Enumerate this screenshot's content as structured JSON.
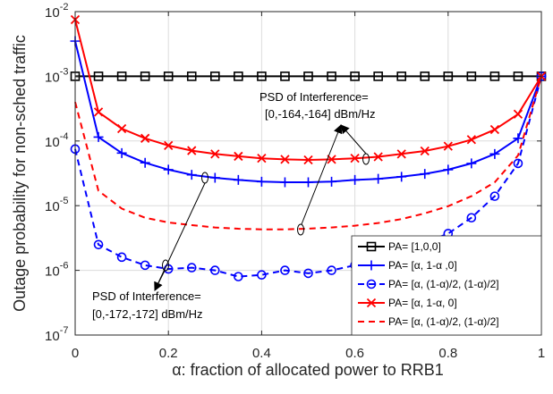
{
  "chart_data": {
    "type": "line",
    "xlabel": "α: fraction of allocated power to RRB1",
    "ylabel": "Outage probability for non-sched traffic",
    "xlim": [
      0,
      1
    ],
    "ylim": [
      1e-07,
      0.01
    ],
    "y_scale": "log",
    "grid": true,
    "legend_position": "bottom-right",
    "x_ticks": [
      0,
      0.2,
      0.4,
      0.6,
      0.8,
      1
    ],
    "x_tick_labels": [
      "0",
      "0.2",
      "0.4",
      "0.6",
      "0.8",
      "1"
    ],
    "y_ticks": [
      1e-07,
      1e-06,
      1e-05,
      0.0001,
      0.001,
      0.01
    ],
    "y_tick_labels": [
      {
        "base": "10",
        "exp": "-7"
      },
      {
        "base": "10",
        "exp": "-6"
      },
      {
        "base": "10",
        "exp": "-5"
      },
      {
        "base": "10",
        "exp": "-4"
      },
      {
        "base": "10",
        "exp": "-3"
      },
      {
        "base": "10",
        "exp": "-2"
      }
    ],
    "x": [
      0,
      0.05,
      0.1,
      0.15,
      0.2,
      0.25,
      0.3,
      0.35,
      0.4,
      0.45,
      0.5,
      0.55,
      0.6,
      0.65,
      0.7,
      0.75,
      0.8,
      0.85,
      0.9,
      0.95,
      1
    ],
    "series": [
      {
        "name": "PA= [1,0,0]",
        "color": "#000000",
        "line": "solid",
        "marker": "square",
        "values": [
          0.001,
          0.001,
          0.001,
          0.001,
          0.001,
          0.001,
          0.001,
          0.001,
          0.001,
          0.001,
          0.001,
          0.001,
          0.001,
          0.001,
          0.001,
          0.001,
          0.001,
          0.001,
          0.001,
          0.001,
          0.001
        ]
      },
      {
        "name": "PA= [α, 1-α ,0]",
        "color": "#0000ff",
        "line": "solid",
        "marker": "plus",
        "values": [
          0.0035,
          0.000115,
          6.5e-05,
          4.6e-05,
          3.6e-05,
          3e-05,
          2.7e-05,
          2.5e-05,
          2.35e-05,
          2.3e-05,
          2.3e-05,
          2.35e-05,
          2.5e-05,
          2.6e-05,
          2.8e-05,
          3.1e-05,
          3.6e-05,
          4.5e-05,
          6.3e-05,
          0.00011,
          0.001
        ]
      },
      {
        "name": "PA= [α, (1-α)/2, (1-α)/2]",
        "color": "#0000ff",
        "line": "dashed",
        "marker": "circle",
        "values": [
          7.5e-05,
          2.5e-06,
          1.6e-06,
          1.2e-06,
          1.05e-06,
          1.1e-06,
          1e-06,
          8e-07,
          8.5e-07,
          1e-06,
          9e-07,
          1e-06,
          1.2e-06,
          1.5e-06,
          2e-06,
          2.7e-06,
          3.7e-06,
          6.5e-06,
          1.4e-05,
          4.5e-05,
          0.001
        ]
      },
      {
        "name": "PA= [α, 1-α, 0]",
        "color": "#ff0000",
        "line": "solid",
        "marker": "x",
        "values": [
          0.0075,
          0.00028,
          0.000155,
          0.00011,
          8.5e-05,
          7.1e-05,
          6.3e-05,
          5.8e-05,
          5.4e-05,
          5.2e-05,
          5.1e-05,
          5.2e-05,
          5.4e-05,
          5.7e-05,
          6.3e-05,
          7e-05,
          8.3e-05,
          0.000105,
          0.00015,
          0.00026,
          0.001
        ]
      },
      {
        "name": "PA= [α, (1-α)/2, (1-α)/2]",
        "color": "#ff0000",
        "line": "dashed",
        "marker": "none",
        "values": [
          0.0004,
          1.7e-05,
          9e-06,
          6.5e-06,
          5.5e-06,
          5e-06,
          4.6e-06,
          4.4e-06,
          4.3e-06,
          4.3e-06,
          4.4e-06,
          4.6e-06,
          4.9e-06,
          5.4e-06,
          6.2e-06,
          7.6e-06,
          9.8e-06,
          1.4e-05,
          2.3e-05,
          6e-05,
          0.001
        ]
      }
    ],
    "annotations": [
      {
        "line1": "PSD of Interference=",
        "line2": "[0,-164,-164] dBm/Hz"
      },
      {
        "line1": "PSD of Interference=",
        "line2": "[0,-172,-172] dBm/Hz"
      }
    ]
  }
}
